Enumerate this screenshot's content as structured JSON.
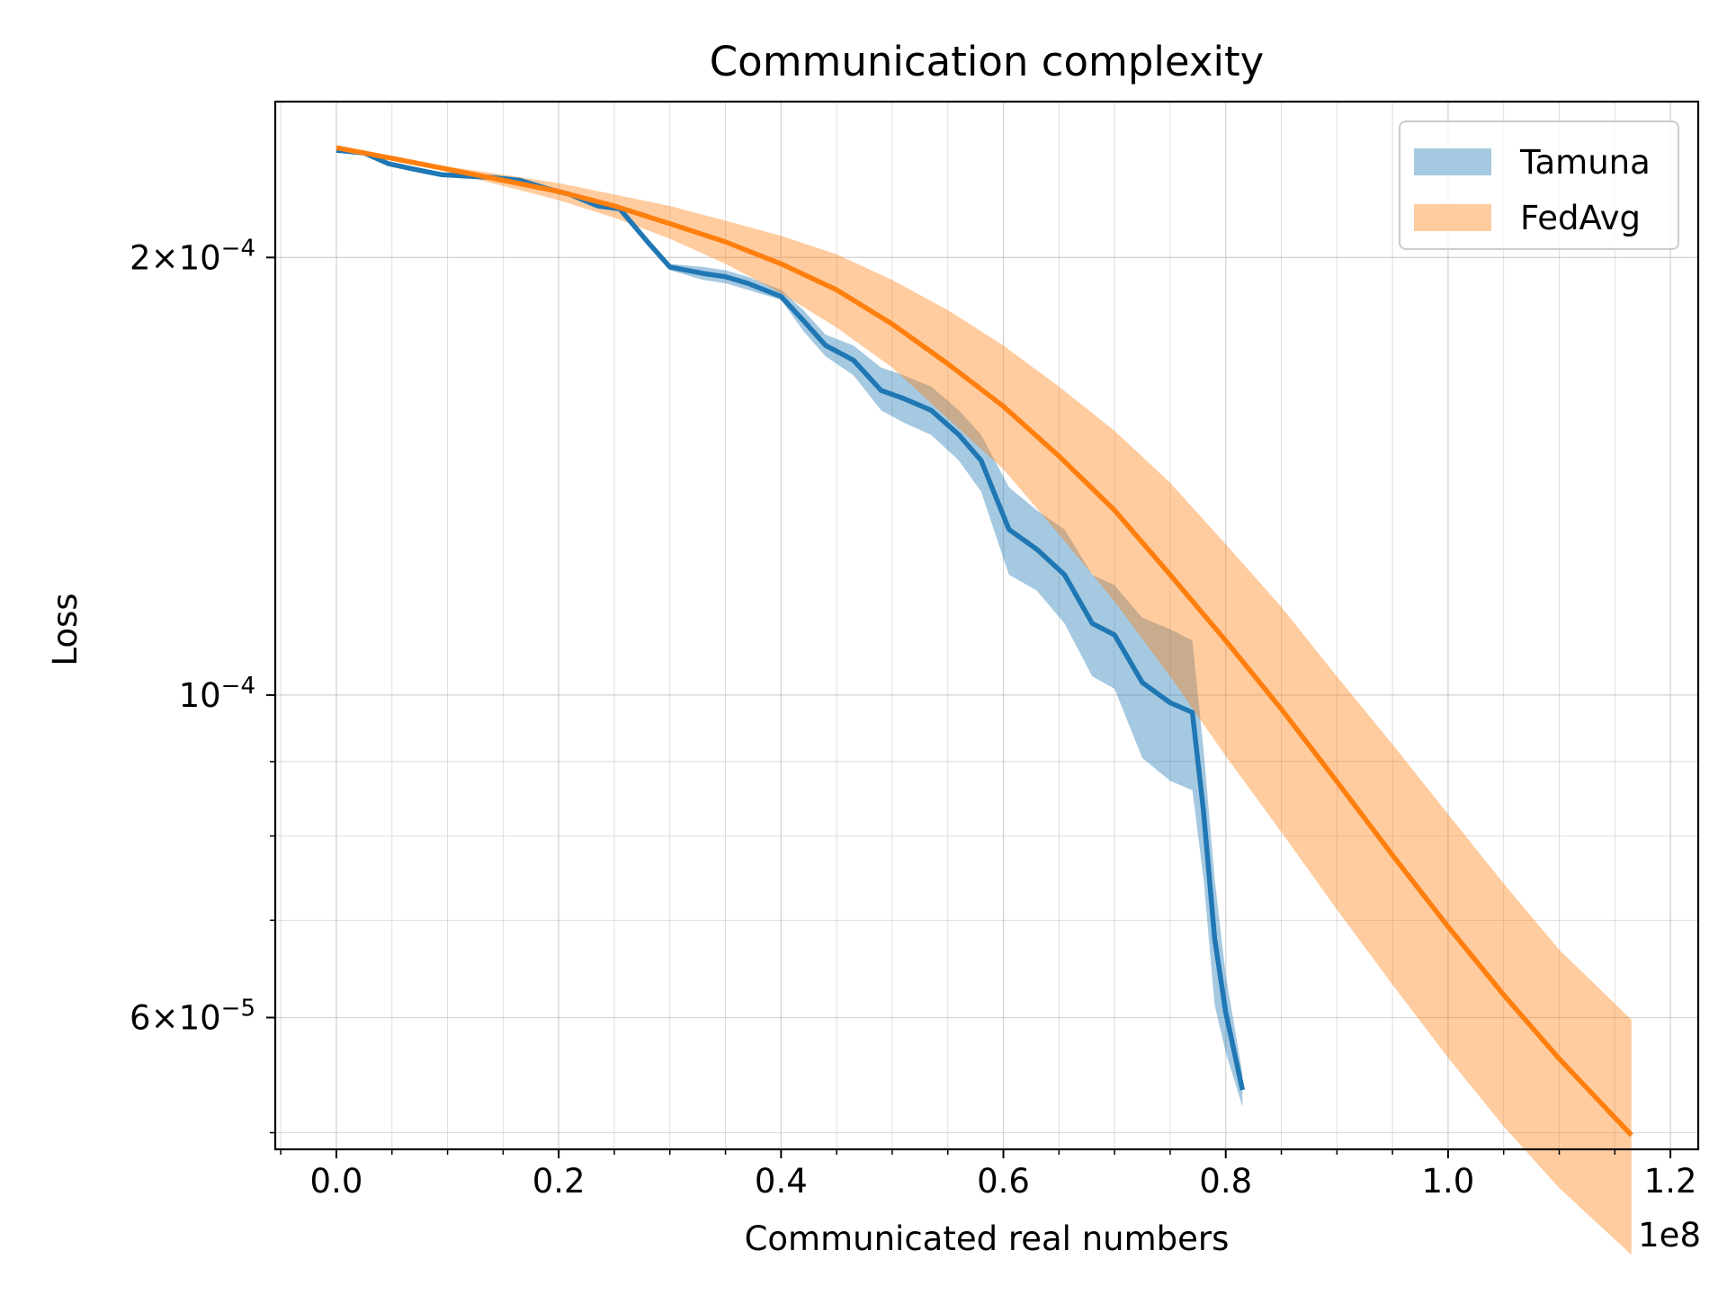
{
  "chart_data": {
    "type": "line",
    "title": "Communication complexity",
    "xlabel": "Communicated real numbers",
    "ylabel": "Loss",
    "x_offset_text": "1e8",
    "xlim": [
      -0.055,
      1.225
    ],
    "ylim": [
      4.87e-05,
      0.000256
    ],
    "yscale": "log",
    "grid": true,
    "legend_position": "top-right",
    "x_ticks": [
      {
        "value": 0.0,
        "label": "0.0"
      },
      {
        "value": 0.2,
        "label": "0.2"
      },
      {
        "value": 0.4,
        "label": "0.4"
      },
      {
        "value": 0.6,
        "label": "0.6"
      },
      {
        "value": 0.8,
        "label": "0.8"
      },
      {
        "value": 1.0,
        "label": "1.0"
      },
      {
        "value": 1.2,
        "label": "1.2"
      }
    ],
    "y_ticks": [
      {
        "value": 0.0002,
        "base": "2×10",
        "exp": "−4"
      },
      {
        "value": 0.0001,
        "base": "10",
        "exp": "−4"
      },
      {
        "value": 6e-05,
        "base": "6×10",
        "exp": "−5"
      }
    ],
    "series": [
      {
        "name": "Tamuna",
        "color": "#1f77b4",
        "band_color": "#1f77b4",
        "x": [
          0.0,
          0.025,
          0.047,
          0.07,
          0.095,
          0.14,
          0.165,
          0.19,
          0.21,
          0.235,
          0.255,
          0.28,
          0.3,
          0.33,
          0.35,
          0.37,
          0.4,
          0.42,
          0.44,
          0.465,
          0.49,
          0.51,
          0.535,
          0.56,
          0.58,
          0.605,
          0.63,
          0.655,
          0.68,
          0.7,
          0.725,
          0.75,
          0.77,
          0.78,
          0.79,
          0.8,
          0.815
        ],
        "y": [
          0.000237,
          0.000236,
          0.000232,
          0.00023,
          0.000228,
          0.000227,
          0.000226,
          0.000223,
          0.000221,
          0.000217,
          0.000216,
          0.000205,
          0.000197,
          0.000195,
          0.000194,
          0.000192,
          0.000188,
          0.000181,
          0.000174,
          0.00017,
          0.000162,
          0.00016,
          0.000157,
          0.000151,
          0.000145,
          0.00013,
          0.000126,
          0.000121,
          0.000112,
          0.00011,
          0.000102,
          9.88e-05,
          9.73e-05,
          8.32e-05,
          6.8e-05,
          6.05e-05,
          5.35e-05
        ],
        "y_lower": [
          0.000237,
          0.000236,
          0.000232,
          0.00023,
          0.000228,
          0.000227,
          0.000226,
          0.000223,
          0.000221,
          0.000217,
          0.000216,
          0.000205,
          0.000196,
          0.000193,
          0.000192,
          0.00019,
          0.000187,
          0.000178,
          0.000171,
          0.000166,
          0.000157,
          0.000154,
          0.000151,
          0.000145,
          0.000138,
          0.000121,
          0.000118,
          0.000112,
          0.000103,
          0.000101,
          9.05e-05,
          8.73e-05,
          8.6e-05,
          7.48e-05,
          6.12e-05,
          5.68e-05,
          5.21e-05
        ],
        "y_upper": [
          0.000237,
          0.000236,
          0.000232,
          0.00023,
          0.000228,
          0.000227,
          0.000226,
          0.000223,
          0.000221,
          0.000217,
          0.000216,
          0.000205,
          0.000198,
          0.000197,
          0.000196,
          0.000194,
          0.00019,
          0.000184,
          0.000177,
          0.000174,
          0.000168,
          0.000166,
          0.000163,
          0.000157,
          0.000151,
          0.000139,
          0.000134,
          0.00013,
          0.000121,
          0.000119,
          0.000113,
          0.000111,
          0.000109,
          9.18e-05,
          7.48e-05,
          6.42e-05,
          5.49e-05
        ]
      },
      {
        "name": "FedAvg",
        "color": "#ff7f0e",
        "band_color": "#ff7f0e",
        "x": [
          0.0,
          0.05,
          0.1,
          0.15,
          0.2,
          0.25,
          0.3,
          0.35,
          0.4,
          0.45,
          0.5,
          0.55,
          0.6,
          0.65,
          0.7,
          0.75,
          0.8,
          0.85,
          0.9,
          0.95,
          1.0,
          1.05,
          1.1,
          1.165
        ],
        "y": [
          0.000238,
          0.000234,
          0.00023,
          0.000226,
          0.000222,
          0.000217,
          0.000211,
          0.000205,
          0.000198,
          0.00019,
          0.00018,
          0.000169,
          0.000158,
          0.000146,
          0.000134,
          0.000121,
          0.000109,
          9.78e-05,
          8.72e-05,
          7.76e-05,
          6.93e-05,
          6.22e-05,
          5.62e-05,
          4.98e-05
        ],
        "y_lower": [
          0.000238,
          0.000234,
          0.000229,
          0.000224,
          0.000219,
          0.000213,
          0.000206,
          0.000198,
          0.000189,
          0.000179,
          0.000168,
          0.000155,
          0.000143,
          0.000129,
          0.000116,
          0.000103,
          9.08e-05,
          8.05e-05,
          7.12e-05,
          6.32e-05,
          5.63e-05,
          5.05e-05,
          4.58e-05,
          4.12e-05
        ],
        "y_upper": [
          0.000238,
          0.000235,
          0.000231,
          0.000228,
          0.000225,
          0.000221,
          0.000217,
          0.000212,
          0.000207,
          0.000201,
          0.000193,
          0.000184,
          0.000174,
          0.000163,
          0.000152,
          0.00014,
          0.000127,
          0.000115,
          0.000103,
          9.25e-05,
          8.28e-05,
          7.42e-05,
          6.68e-05,
          5.98e-05
        ]
      }
    ]
  }
}
